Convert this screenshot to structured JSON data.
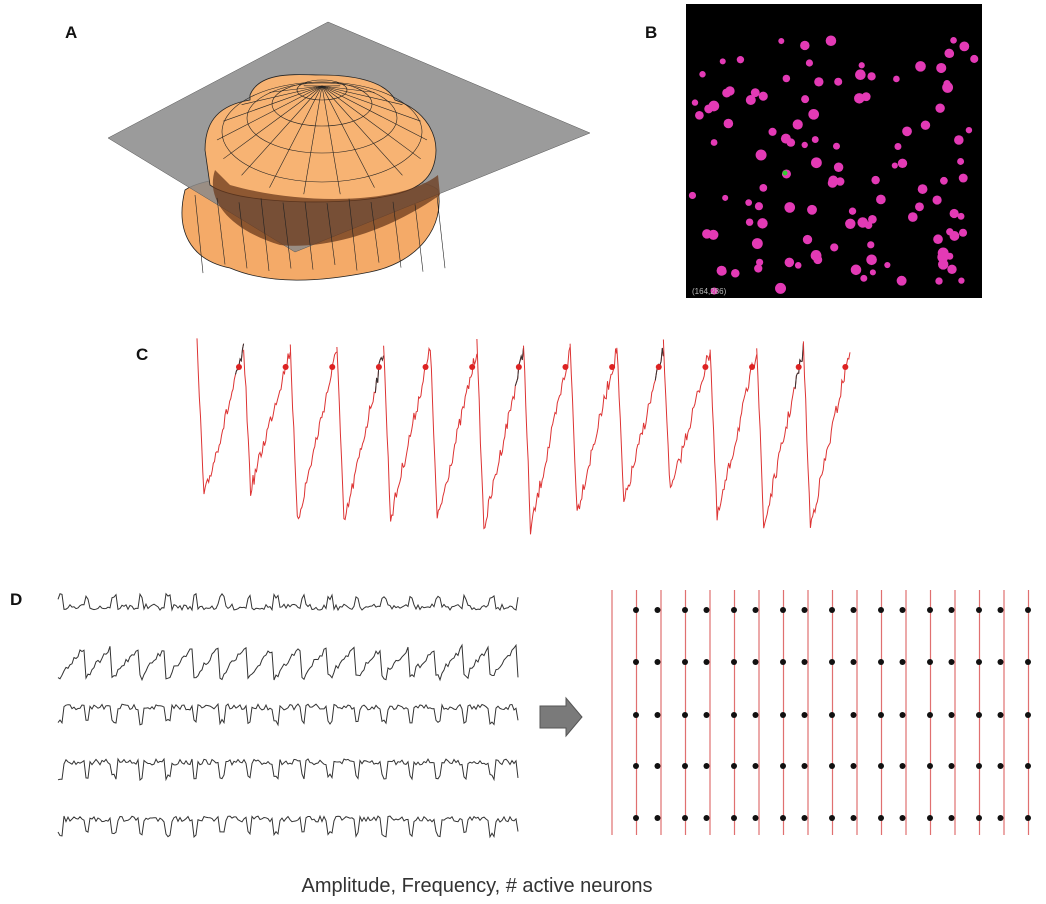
{
  "panels": {
    "A": {
      "label": "A"
    },
    "B": {
      "label": "B",
      "coordinate": "(164,286)"
    },
    "C": {
      "label": "C"
    },
    "D": {
      "label": "D",
      "caption": "Amplitude, Frequency, # active neurons"
    }
  }
}
